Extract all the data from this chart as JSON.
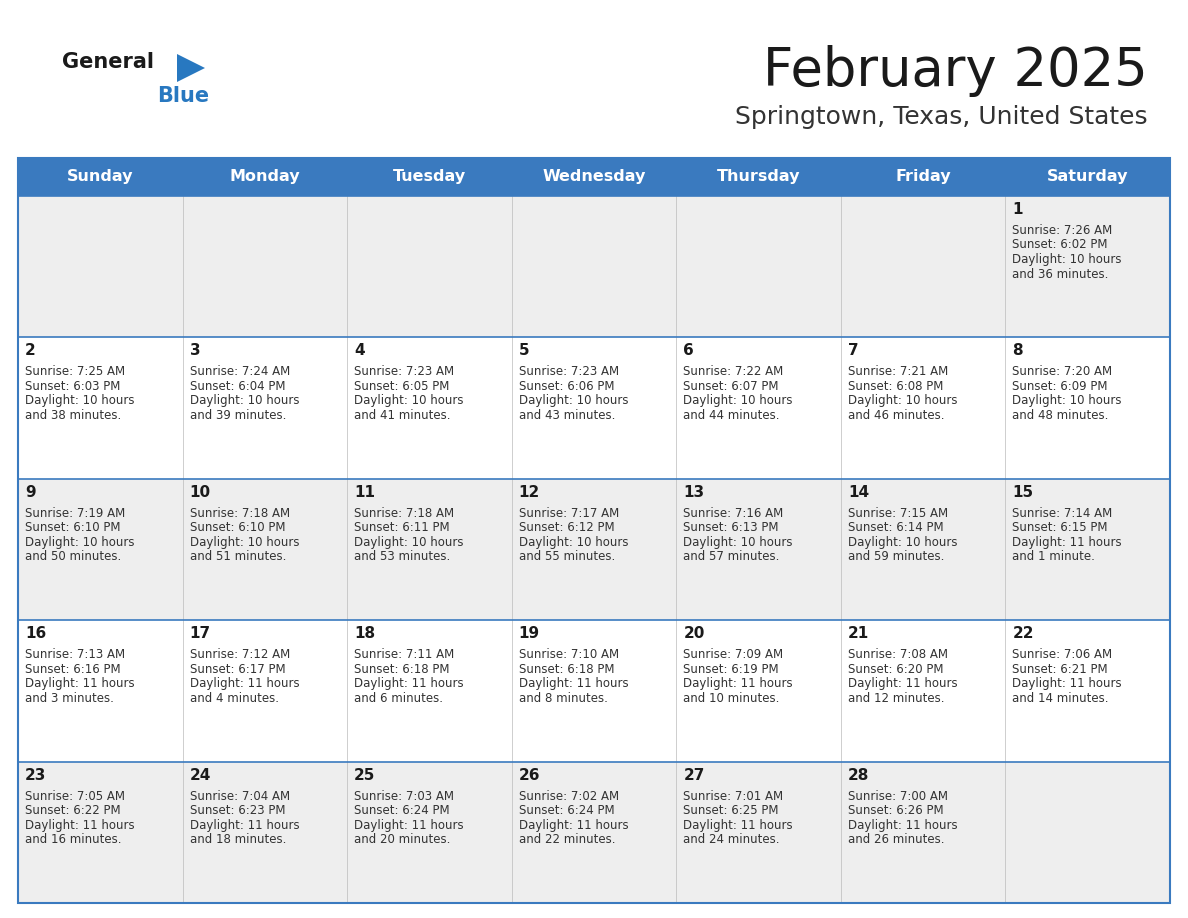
{
  "title": "February 2025",
  "subtitle": "Springtown, Texas, United States",
  "header_color": "#3a7abf",
  "header_text_color": "#ffffff",
  "cell_bg_row0": "#eeeeee",
  "cell_bg_row1": "#ffffff",
  "cell_bg_row2": "#eeeeee",
  "cell_bg_row3": "#ffffff",
  "cell_bg_row4": "#eeeeee",
  "border_color": "#3a7abf",
  "row_divider_color": "#3a7abf",
  "days_of_week": [
    "Sunday",
    "Monday",
    "Tuesday",
    "Wednesday",
    "Thursday",
    "Friday",
    "Saturday"
  ],
  "title_color": "#1a1a1a",
  "subtitle_color": "#333333",
  "cell_text_color": "#333333",
  "day_num_color": "#1a1a1a",
  "logo_black": "#1a1a1a",
  "logo_blue": "#2878c0",
  "triangle_color": "#2878c0",
  "calendar": [
    [
      {
        "day": null,
        "sunrise": null,
        "sunset": null,
        "daylight": null
      },
      {
        "day": null,
        "sunrise": null,
        "sunset": null,
        "daylight": null
      },
      {
        "day": null,
        "sunrise": null,
        "sunset": null,
        "daylight": null
      },
      {
        "day": null,
        "sunrise": null,
        "sunset": null,
        "daylight": null
      },
      {
        "day": null,
        "sunrise": null,
        "sunset": null,
        "daylight": null
      },
      {
        "day": null,
        "sunrise": null,
        "sunset": null,
        "daylight": null
      },
      {
        "day": 1,
        "sunrise": "7:26 AM",
        "sunset": "6:02 PM",
        "daylight": "10 hours\nand 36 minutes."
      }
    ],
    [
      {
        "day": 2,
        "sunrise": "7:25 AM",
        "sunset": "6:03 PM",
        "daylight": "10 hours\nand 38 minutes."
      },
      {
        "day": 3,
        "sunrise": "7:24 AM",
        "sunset": "6:04 PM",
        "daylight": "10 hours\nand 39 minutes."
      },
      {
        "day": 4,
        "sunrise": "7:23 AM",
        "sunset": "6:05 PM",
        "daylight": "10 hours\nand 41 minutes."
      },
      {
        "day": 5,
        "sunrise": "7:23 AM",
        "sunset": "6:06 PM",
        "daylight": "10 hours\nand 43 minutes."
      },
      {
        "day": 6,
        "sunrise": "7:22 AM",
        "sunset": "6:07 PM",
        "daylight": "10 hours\nand 44 minutes."
      },
      {
        "day": 7,
        "sunrise": "7:21 AM",
        "sunset": "6:08 PM",
        "daylight": "10 hours\nand 46 minutes."
      },
      {
        "day": 8,
        "sunrise": "7:20 AM",
        "sunset": "6:09 PM",
        "daylight": "10 hours\nand 48 minutes."
      }
    ],
    [
      {
        "day": 9,
        "sunrise": "7:19 AM",
        "sunset": "6:10 PM",
        "daylight": "10 hours\nand 50 minutes."
      },
      {
        "day": 10,
        "sunrise": "7:18 AM",
        "sunset": "6:10 PM",
        "daylight": "10 hours\nand 51 minutes."
      },
      {
        "day": 11,
        "sunrise": "7:18 AM",
        "sunset": "6:11 PM",
        "daylight": "10 hours\nand 53 minutes."
      },
      {
        "day": 12,
        "sunrise": "7:17 AM",
        "sunset": "6:12 PM",
        "daylight": "10 hours\nand 55 minutes."
      },
      {
        "day": 13,
        "sunrise": "7:16 AM",
        "sunset": "6:13 PM",
        "daylight": "10 hours\nand 57 minutes."
      },
      {
        "day": 14,
        "sunrise": "7:15 AM",
        "sunset": "6:14 PM",
        "daylight": "10 hours\nand 59 minutes."
      },
      {
        "day": 15,
        "sunrise": "7:14 AM",
        "sunset": "6:15 PM",
        "daylight": "11 hours\nand 1 minute."
      }
    ],
    [
      {
        "day": 16,
        "sunrise": "7:13 AM",
        "sunset": "6:16 PM",
        "daylight": "11 hours\nand 3 minutes."
      },
      {
        "day": 17,
        "sunrise": "7:12 AM",
        "sunset": "6:17 PM",
        "daylight": "11 hours\nand 4 minutes."
      },
      {
        "day": 18,
        "sunrise": "7:11 AM",
        "sunset": "6:18 PM",
        "daylight": "11 hours\nand 6 minutes."
      },
      {
        "day": 19,
        "sunrise": "7:10 AM",
        "sunset": "6:18 PM",
        "daylight": "11 hours\nand 8 minutes."
      },
      {
        "day": 20,
        "sunrise": "7:09 AM",
        "sunset": "6:19 PM",
        "daylight": "11 hours\nand 10 minutes."
      },
      {
        "day": 21,
        "sunrise": "7:08 AM",
        "sunset": "6:20 PM",
        "daylight": "11 hours\nand 12 minutes."
      },
      {
        "day": 22,
        "sunrise": "7:06 AM",
        "sunset": "6:21 PM",
        "daylight": "11 hours\nand 14 minutes."
      }
    ],
    [
      {
        "day": 23,
        "sunrise": "7:05 AM",
        "sunset": "6:22 PM",
        "daylight": "11 hours\nand 16 minutes."
      },
      {
        "day": 24,
        "sunrise": "7:04 AM",
        "sunset": "6:23 PM",
        "daylight": "11 hours\nand 18 minutes."
      },
      {
        "day": 25,
        "sunrise": "7:03 AM",
        "sunset": "6:24 PM",
        "daylight": "11 hours\nand 20 minutes."
      },
      {
        "day": 26,
        "sunrise": "7:02 AM",
        "sunset": "6:24 PM",
        "daylight": "11 hours\nand 22 minutes."
      },
      {
        "day": 27,
        "sunrise": "7:01 AM",
        "sunset": "6:25 PM",
        "daylight": "11 hours\nand 24 minutes."
      },
      {
        "day": 28,
        "sunrise": "7:00 AM",
        "sunset": "6:26 PM",
        "daylight": "11 hours\nand 26 minutes."
      },
      {
        "day": null,
        "sunrise": null,
        "sunset": null,
        "daylight": null
      }
    ]
  ]
}
